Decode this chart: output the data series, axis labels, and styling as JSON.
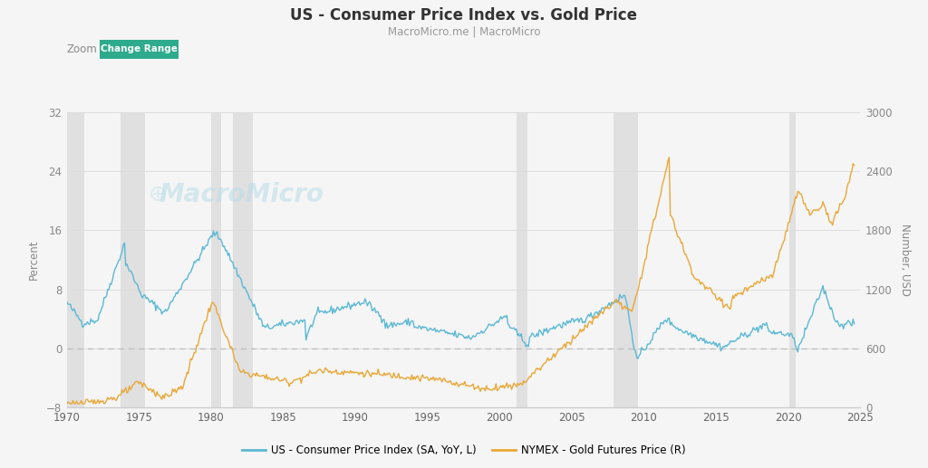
{
  "title": "US - Consumer Price Index vs. Gold Price",
  "subtitle": "MacroMicro.me | MacroMicro",
  "ylabel_left": "Percent",
  "ylabel_right": "Number, USD",
  "ylim_left": [
    -8,
    32
  ],
  "ylim_right": [
    0,
    3000
  ],
  "yticks_left": [
    -8,
    0,
    8,
    16,
    24,
    32
  ],
  "yticks_right": [
    0,
    600,
    1200,
    1800,
    2400,
    3000
  ],
  "xlim": [
    1970,
    2025
  ],
  "xticks": [
    1970,
    1975,
    1980,
    1985,
    1990,
    1995,
    2000,
    2005,
    2010,
    2015,
    2020,
    2025
  ],
  "cpi_color": "#5bb8d4",
  "gold_color": "#e8a838",
  "background_color": "#f5f5f5",
  "plot_bg_color": "#f5f5f5",
  "grid_color": "#dddddd",
  "recession_color": "#e0e0e0",
  "zero_line_color": "#bbbbbb",
  "legend_cpi": "US - Consumer Price Index (SA, YoY, L)",
  "legend_gold": "NYMEX - Gold Futures Price (R)",
  "recession_bands": [
    [
      1969.8,
      1971.2
    ],
    [
      1973.7,
      1975.4
    ],
    [
      1980.0,
      1980.7
    ],
    [
      1981.5,
      1982.9
    ],
    [
      2001.2,
      2001.9
    ],
    [
      2007.9,
      2009.6
    ],
    [
      2020.1,
      2020.5
    ]
  ],
  "zoom_label": "Zoom",
  "change_range_label": "Change Range",
  "watermark": "MacroMicro"
}
